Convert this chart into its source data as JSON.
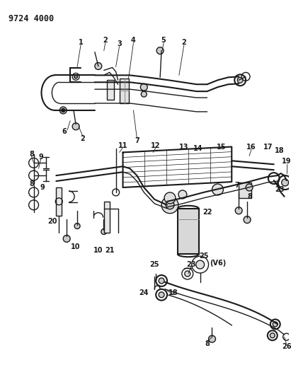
{
  "title": "9724 4000",
  "bg": "#ffffff",
  "lc": "#1a1a1a",
  "figsize": [
    4.11,
    5.33
  ],
  "dpi": 100
}
